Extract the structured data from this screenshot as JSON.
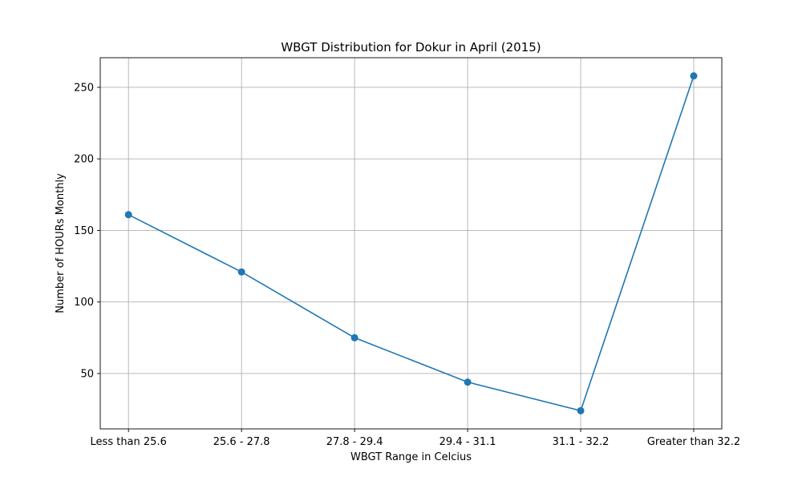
{
  "chart_data": {
    "type": "line",
    "title": "WBGT Distribution for Dokur in April (2015)",
    "xlabel": "WBGT Range in Celcius",
    "ylabel": "Number of HOURs Monthly",
    "categories": [
      "Less than 25.6",
      "25.6 - 27.8",
      "27.8 - 29.4",
      "29.4 - 31.1",
      "31.1 - 32.2",
      "Greater than 32.2"
    ],
    "series": [
      {
        "values": [
          161,
          121,
          75,
          44,
          24,
          258
        ],
        "color": "#1f77b4"
      }
    ],
    "yticks": [
      50,
      100,
      150,
      200,
      250
    ],
    "ylim": [
      11.3,
      270.7
    ],
    "grid": true,
    "marker": "circle"
  }
}
